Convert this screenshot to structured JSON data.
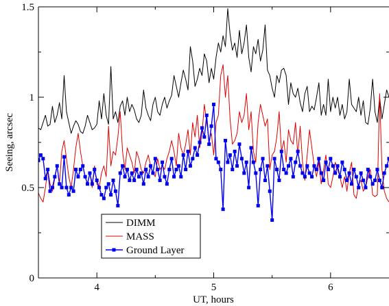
{
  "chart_data": {
    "type": "line",
    "title": "",
    "xlabel": "UT, hours",
    "ylabel": "Seeing, arcsec",
    "xlim": [
      3.5,
      6.5
    ],
    "ylim": [
      0,
      1.5
    ],
    "x_ticks": [
      4,
      5,
      6
    ],
    "y_ticks": [
      0,
      0.5,
      1,
      1.5
    ],
    "x_tick_labels": [
      "4",
      "5",
      "6"
    ],
    "y_tick_labels": [
      "0",
      "0.5",
      "1",
      "1.5"
    ],
    "grid": false,
    "legend_position": "bottom-left",
    "colors": {
      "DIMM": "#000000",
      "MASS": "#dd0000",
      "Ground Layer": "#0000ee"
    },
    "series": [
      {
        "name": "DIMM",
        "x": [
          3.5,
          3.52,
          3.54,
          3.56,
          3.58,
          3.6,
          3.62,
          3.64,
          3.66,
          3.68,
          3.7,
          3.72,
          3.74,
          3.76,
          3.78,
          3.8,
          3.82,
          3.84,
          3.86,
          3.88,
          3.9,
          3.92,
          3.94,
          3.96,
          3.98,
          4.0,
          4.02,
          4.04,
          4.06,
          4.08,
          4.1,
          4.12,
          4.14,
          4.16,
          4.18,
          4.2,
          4.22,
          4.24,
          4.26,
          4.28,
          4.3,
          4.32,
          4.34,
          4.36,
          4.38,
          4.4,
          4.42,
          4.44,
          4.46,
          4.48,
          4.5,
          4.52,
          4.54,
          4.56,
          4.58,
          4.6,
          4.62,
          4.64,
          4.66,
          4.68,
          4.7,
          4.72,
          4.74,
          4.76,
          4.78,
          4.8,
          4.82,
          4.84,
          4.86,
          4.88,
          4.9,
          4.92,
          4.94,
          4.96,
          4.98,
          5.0,
          5.02,
          5.04,
          5.06,
          5.08,
          5.1,
          5.12,
          5.14,
          5.16,
          5.18,
          5.2,
          5.22,
          5.24,
          5.26,
          5.28,
          5.3,
          5.32,
          5.34,
          5.36,
          5.38,
          5.4,
          5.42,
          5.44,
          5.46,
          5.48,
          5.5,
          5.52,
          5.54,
          5.56,
          5.58,
          5.6,
          5.62,
          5.64,
          5.66,
          5.68,
          5.7,
          5.72,
          5.74,
          5.76,
          5.78,
          5.8,
          5.82,
          5.84,
          5.86,
          5.88,
          5.9,
          5.92,
          5.94,
          5.96,
          5.98,
          6.0,
          6.02,
          6.04,
          6.06,
          6.08,
          6.1,
          6.12,
          6.14,
          6.16,
          6.18,
          6.2,
          6.22,
          6.24,
          6.26,
          6.28,
          6.3,
          6.32,
          6.34,
          6.36,
          6.38,
          6.4,
          6.42,
          6.44,
          6.46,
          6.48,
          6.5
        ],
        "y": [
          0.83,
          0.82,
          0.86,
          0.9,
          0.84,
          0.85,
          0.95,
          0.86,
          0.9,
          0.97,
          0.88,
          1.12,
          0.92,
          0.86,
          0.8,
          0.84,
          0.87,
          0.85,
          0.81,
          0.8,
          0.84,
          0.9,
          0.86,
          0.82,
          0.83,
          0.85,
          0.98,
          0.88,
          1.02,
          0.9,
          0.85,
          1.17,
          0.88,
          0.92,
          0.86,
          0.95,
          0.98,
          0.9,
          1.0,
          0.92,
          0.96,
          0.93,
          0.88,
          0.86,
          0.9,
          1.04,
          0.94,
          0.9,
          0.87,
          0.96,
          1.0,
          0.92,
          0.9,
          0.96,
          1.0,
          0.94,
          0.98,
          1.01,
          1.12,
          1.06,
          1.0,
          1.08,
          1.15,
          1.1,
          1.04,
          1.28,
          1.2,
          1.06,
          1.1,
          1.16,
          1.12,
          1.24,
          1.2,
          1.08,
          1.16,
          1.1,
          1.22,
          1.3,
          1.25,
          1.34,
          1.28,
          1.49,
          1.35,
          1.26,
          1.3,
          1.22,
          1.37,
          1.24,
          1.3,
          1.4,
          1.22,
          1.14,
          1.28,
          1.24,
          1.32,
          1.2,
          1.26,
          1.4,
          1.15,
          1.12,
          1.05,
          1.0,
          1.12,
          1.08,
          1.15,
          1.16,
          1.12,
          0.96,
          1.08,
          1.02,
          1.0,
          1.05,
          0.97,
          0.92,
          1.02,
          1.06,
          0.92,
          0.95,
          0.93,
          1.0,
          1.08,
          0.9,
          0.96,
          0.9,
          1.1,
          0.92,
          1.0,
          0.94,
          1.0,
          0.9,
          0.96,
          0.88,
          0.92,
          1.1,
          0.96,
          0.94,
          0.92,
          1.0,
          0.9,
          0.98,
          0.86,
          0.85,
          0.94,
          1.1,
          0.92,
          0.86,
          1.0,
          0.88,
          0.96,
          1.04,
          1.0
        ]
      },
      {
        "name": "MASS",
        "x": [
          3.5,
          3.52,
          3.54,
          3.56,
          3.58,
          3.6,
          3.62,
          3.64,
          3.66,
          3.68,
          3.7,
          3.72,
          3.74,
          3.76,
          3.78,
          3.8,
          3.82,
          3.84,
          3.86,
          3.88,
          3.9,
          3.92,
          3.94,
          3.96,
          3.98,
          4.0,
          4.02,
          4.04,
          4.06,
          4.08,
          4.1,
          4.12,
          4.14,
          4.16,
          4.18,
          4.2,
          4.22,
          4.24,
          4.26,
          4.28,
          4.3,
          4.32,
          4.34,
          4.36,
          4.38,
          4.4,
          4.42,
          4.44,
          4.46,
          4.48,
          4.5,
          4.52,
          4.54,
          4.56,
          4.58,
          4.6,
          4.62,
          4.64,
          4.66,
          4.68,
          4.7,
          4.72,
          4.74,
          4.76,
          4.78,
          4.8,
          4.82,
          4.84,
          4.86,
          4.88,
          4.9,
          4.92,
          4.94,
          4.96,
          4.98,
          5.0,
          5.02,
          5.04,
          5.06,
          5.08,
          5.1,
          5.12,
          5.14,
          5.16,
          5.18,
          5.2,
          5.22,
          5.24,
          5.26,
          5.28,
          5.3,
          5.32,
          5.34,
          5.36,
          5.38,
          5.4,
          5.42,
          5.44,
          5.46,
          5.48,
          5.5,
          5.52,
          5.54,
          5.56,
          5.58,
          5.6,
          5.62,
          5.64,
          5.66,
          5.68,
          5.7,
          5.72,
          5.74,
          5.76,
          5.78,
          5.8,
          5.82,
          5.84,
          5.86,
          5.88,
          5.9,
          5.92,
          5.94,
          5.96,
          5.98,
          6.0,
          6.02,
          6.04,
          6.06,
          6.08,
          6.1,
          6.12,
          6.14,
          6.16,
          6.18,
          6.2,
          6.22,
          6.24,
          6.26,
          6.28,
          6.3,
          6.32,
          6.34,
          6.36,
          6.38,
          6.4,
          6.42,
          6.44,
          6.46,
          6.48,
          6.5
        ],
        "y": [
          0.47,
          0.44,
          0.42,
          0.5,
          0.6,
          0.52,
          0.48,
          0.55,
          0.62,
          0.52,
          0.7,
          0.76,
          0.66,
          0.56,
          0.5,
          0.6,
          0.72,
          0.8,
          0.7,
          0.62,
          0.56,
          0.52,
          0.58,
          0.5,
          0.62,
          0.52,
          0.5,
          0.58,
          0.62,
          0.56,
          0.84,
          0.62,
          0.7,
          0.68,
          0.78,
          0.92,
          0.7,
          0.6,
          0.72,
          0.68,
          0.64,
          0.58,
          0.7,
          0.66,
          0.6,
          0.58,
          0.64,
          0.68,
          0.62,
          0.58,
          0.56,
          0.66,
          0.6,
          0.62,
          0.6,
          0.66,
          0.7,
          0.76,
          0.7,
          0.62,
          0.8,
          0.72,
          0.68,
          0.74,
          0.82,
          0.68,
          0.86,
          0.78,
          0.9,
          0.72,
          0.8,
          0.96,
          0.86,
          0.76,
          0.8,
          0.68,
          0.86,
          0.9,
          1.12,
          1.18,
          1.0,
          1.12,
          0.88,
          0.74,
          0.76,
          0.8,
          0.92,
          0.86,
          0.9,
          1.02,
          0.82,
          0.92,
          0.7,
          0.64,
          0.86,
          0.96,
          0.9,
          0.84,
          0.88,
          0.6,
          0.68,
          0.7,
          0.78,
          0.92,
          0.7,
          0.76,
          0.64,
          0.82,
          0.76,
          0.74,
          0.86,
          0.68,
          0.84,
          0.64,
          0.54,
          0.68,
          0.82,
          0.72,
          0.62,
          0.56,
          0.64,
          0.52,
          0.6,
          0.68,
          0.52,
          0.5,
          0.56,
          0.64,
          0.6,
          0.56,
          0.5,
          0.56,
          0.48,
          0.58,
          0.64,
          0.46,
          0.44,
          0.52,
          0.54,
          0.48,
          0.5,
          0.56,
          0.6,
          0.46,
          0.45,
          0.46,
          1.02,
          0.6,
          0.48,
          0.44,
          0.42
        ]
      },
      {
        "name": "Ground Layer",
        "x": [
          3.5,
          3.52,
          3.54,
          3.56,
          3.58,
          3.6,
          3.62,
          3.64,
          3.66,
          3.68,
          3.7,
          3.72,
          3.74,
          3.76,
          3.78,
          3.8,
          3.82,
          3.84,
          3.86,
          3.88,
          3.9,
          3.92,
          3.94,
          3.96,
          3.98,
          4.0,
          4.02,
          4.04,
          4.06,
          4.08,
          4.1,
          4.12,
          4.14,
          4.16,
          4.18,
          4.2,
          4.22,
          4.24,
          4.26,
          4.28,
          4.3,
          4.32,
          4.34,
          4.36,
          4.38,
          4.4,
          4.42,
          4.44,
          4.46,
          4.48,
          4.5,
          4.52,
          4.54,
          4.56,
          4.58,
          4.6,
          4.62,
          4.64,
          4.66,
          4.68,
          4.7,
          4.72,
          4.74,
          4.76,
          4.78,
          4.8,
          4.82,
          4.84,
          4.86,
          4.88,
          4.9,
          4.92,
          4.94,
          4.96,
          4.98,
          5.0,
          5.02,
          5.04,
          5.06,
          5.08,
          5.1,
          5.12,
          5.14,
          5.16,
          5.18,
          5.2,
          5.22,
          5.24,
          5.26,
          5.28,
          5.3,
          5.32,
          5.34,
          5.36,
          5.38,
          5.4,
          5.42,
          5.44,
          5.46,
          5.48,
          5.5,
          5.52,
          5.54,
          5.56,
          5.58,
          5.6,
          5.62,
          5.64,
          5.66,
          5.68,
          5.7,
          5.72,
          5.74,
          5.76,
          5.78,
          5.8,
          5.82,
          5.84,
          5.86,
          5.88,
          5.9,
          5.92,
          5.94,
          5.96,
          5.98,
          6.0,
          6.02,
          6.04,
          6.06,
          6.08,
          6.1,
          6.12,
          6.14,
          6.16,
          6.18,
          6.2,
          6.22,
          6.24,
          6.26,
          6.28,
          6.3,
          6.32,
          6.34,
          6.36,
          6.38,
          6.4,
          6.42,
          6.44,
          6.46,
          6.48,
          6.5
        ],
        "y": [
          0.65,
          0.68,
          0.66,
          0.55,
          0.6,
          0.48,
          0.5,
          0.56,
          0.62,
          0.52,
          0.5,
          0.67,
          0.5,
          0.46,
          0.5,
          0.48,
          0.6,
          0.56,
          0.6,
          0.62,
          0.56,
          0.52,
          0.58,
          0.52,
          0.6,
          0.54,
          0.5,
          0.46,
          0.44,
          0.5,
          0.52,
          0.46,
          0.54,
          0.48,
          0.4,
          0.58,
          0.62,
          0.56,
          0.6,
          0.54,
          0.58,
          0.54,
          0.6,
          0.56,
          0.58,
          0.52,
          0.6,
          0.56,
          0.62,
          0.58,
          0.66,
          0.6,
          0.54,
          0.64,
          0.56,
          0.52,
          0.6,
          0.66,
          0.56,
          0.6,
          0.62,
          0.56,
          0.68,
          0.6,
          0.7,
          0.62,
          0.66,
          0.72,
          0.68,
          0.75,
          0.83,
          0.78,
          0.9,
          0.74,
          0.84,
          0.96,
          0.66,
          0.64,
          0.6,
          0.38,
          0.76,
          0.64,
          0.68,
          0.6,
          0.7,
          0.62,
          0.74,
          0.66,
          0.58,
          0.64,
          0.5,
          0.72,
          0.64,
          0.58,
          0.4,
          0.6,
          0.66,
          0.54,
          0.62,
          0.48,
          0.32,
          0.66,
          0.6,
          0.54,
          0.7,
          0.6,
          0.58,
          0.62,
          0.66,
          0.56,
          0.64,
          0.7,
          0.62,
          0.58,
          0.56,
          0.62,
          0.58,
          0.56,
          0.62,
          0.6,
          0.66,
          0.58,
          0.54,
          0.64,
          0.6,
          0.66,
          0.62,
          0.58,
          0.62,
          0.56,
          0.64,
          0.6,
          0.54,
          0.58,
          0.52,
          0.6,
          0.56,
          0.5,
          0.58,
          0.54,
          0.5,
          0.6,
          0.56,
          0.52,
          0.54,
          0.6,
          0.54,
          0.5,
          0.58,
          0.62,
          0.66
        ]
      }
    ]
  }
}
